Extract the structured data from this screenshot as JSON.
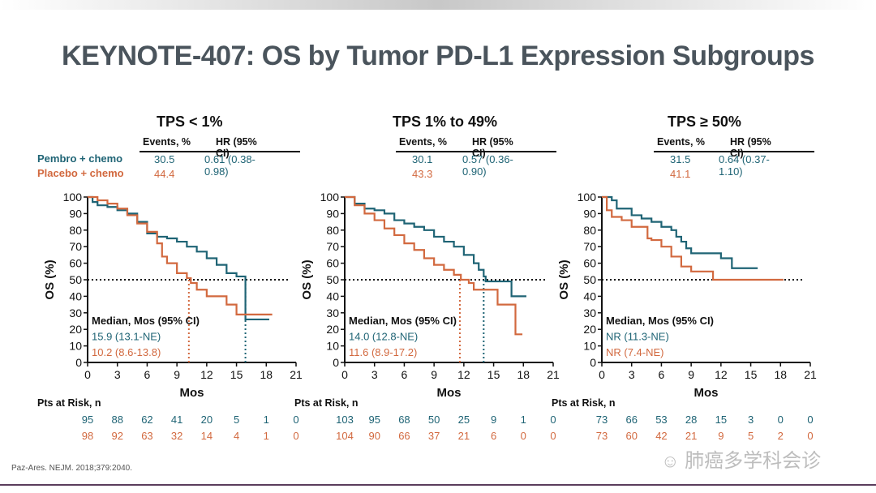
{
  "slide": {
    "title": "KEYNOTE-407: OS by Tumor PD-L1 Expression Subgroups",
    "citation": "Paz-Ares. NEJM. 2018;379:2040.",
    "watermark": "肺癌多学科会诊",
    "legend": {
      "pembro": "Pembro + chemo",
      "placebo": "Placebo + chemo"
    },
    "colors": {
      "pembro": "#1f6475",
      "placebo": "#d2693f",
      "text": "#111111",
      "title": "#4a545c"
    }
  },
  "chart_data": [
    {
      "type": "line",
      "title": "TPS < 1%",
      "xlabel": "Mos",
      "ylabel": "OS (%)",
      "xlim": [
        0,
        21
      ],
      "ylim": [
        0,
        100
      ],
      "xticks": [
        0,
        3,
        6,
        9,
        12,
        15,
        18,
        21
      ],
      "yticks": [
        0,
        10,
        20,
        30,
        40,
        50,
        60,
        70,
        80,
        90,
        100
      ],
      "reference_line": 50,
      "table": {
        "events_header": "Events, %",
        "hr_header": "HR (95% CI)",
        "pembro_events": "30.5",
        "placebo_events": "44.4",
        "hr": "0.61 (0.38-0.98)"
      },
      "median_header": "Median, Mos (95% CI)",
      "median_pembro": "15.9 (13.1-NE)",
      "median_placebo": "10.2 (8.6-13.8)",
      "median_values": {
        "pembro": 15.9,
        "placebo": 10.2
      },
      "risk_label": "Pts at Risk, n",
      "risk_pembro": [
        "95",
        "88",
        "62",
        "41",
        "20",
        "5",
        "1",
        "0"
      ],
      "risk_placebo": [
        "98",
        "92",
        "63",
        "32",
        "14",
        "4",
        "1",
        "0"
      ],
      "series": [
        {
          "name": "Pembro + chemo",
          "x": [
            0,
            0.5,
            1,
            2,
            3,
            4,
            5,
            6,
            7,
            8,
            9,
            10,
            11,
            12,
            13,
            14,
            15,
            15.9,
            15.9,
            18.3
          ],
          "y": [
            100,
            97,
            95,
            94,
            92,
            90,
            85,
            78,
            76,
            75,
            73,
            70,
            67,
            63,
            59,
            54,
            52,
            52,
            26,
            26
          ]
        },
        {
          "name": "Placebo + chemo",
          "x": [
            0,
            1,
            2,
            3,
            4,
            5,
            6,
            7,
            7.5,
            8,
            9,
            10,
            10.4,
            11,
            12,
            13,
            14,
            15,
            16,
            18.6
          ],
          "y": [
            100,
            98,
            96,
            93,
            89,
            84,
            79,
            72,
            64,
            60,
            54,
            51,
            48,
            44,
            40,
            40,
            35,
            29,
            29,
            29
          ]
        }
      ]
    },
    {
      "type": "line",
      "title": "TPS 1% to 49%",
      "xlabel": "Mos",
      "ylabel": "OS (%)",
      "xlim": [
        0,
        21
      ],
      "ylim": [
        0,
        100
      ],
      "xticks": [
        0,
        3,
        6,
        9,
        12,
        15,
        18,
        21
      ],
      "yticks": [
        0,
        10,
        20,
        30,
        40,
        50,
        60,
        70,
        80,
        90,
        100
      ],
      "reference_line": 50,
      "table": {
        "events_header": "Events, %",
        "hr_header": "HR (95% CI)",
        "pembro_events": "30.1",
        "placebo_events": "43.3",
        "hr": "0.57 (0.36-0.90)"
      },
      "median_header": "Median, Mos (95% CI)",
      "median_pembro": "14.0 (12.8-NE)",
      "median_placebo": "11.6 (8.9-17.2)",
      "median_values": {
        "pembro": 14.0,
        "placebo": 11.6
      },
      "risk_label": "Pts at Risk, n",
      "risk_pembro": [
        "103",
        "95",
        "68",
        "50",
        "25",
        "9",
        "1",
        "0"
      ],
      "risk_placebo": [
        "104",
        "90",
        "66",
        "37",
        "21",
        "6",
        "0",
        "0"
      ],
      "series": [
        {
          "name": "Pembro + chemo",
          "x": [
            0,
            1,
            2,
            3,
            4,
            5,
            6,
            7,
            8,
            9,
            10,
            11,
            12,
            13,
            13.5,
            14,
            14.2,
            16.8,
            16.8,
            18.3
          ],
          "y": [
            100,
            96,
            93,
            92,
            90,
            86,
            84,
            82,
            80,
            76,
            73,
            70,
            65,
            60,
            56,
            52,
            49,
            49,
            40,
            40
          ]
        },
        {
          "name": "Placebo + chemo",
          "x": [
            0,
            1,
            2,
            3,
            4,
            5,
            6,
            7,
            8,
            9,
            10,
            11,
            11.7,
            12.5,
            13,
            14,
            15,
            15.4,
            17.2,
            17.2,
            17.9
          ],
          "y": [
            100,
            95,
            90,
            86,
            81,
            77,
            72,
            68,
            63,
            59,
            56,
            53,
            50,
            48,
            44,
            44,
            44,
            35,
            35,
            17,
            17
          ]
        }
      ]
    },
    {
      "type": "line",
      "title": "TPS ≥ 50%",
      "xlabel": "Mos",
      "ylabel": "OS (%)",
      "xlim": [
        0,
        21
      ],
      "ylim": [
        0,
        100
      ],
      "xticks": [
        0,
        3,
        6,
        9,
        12,
        15,
        18,
        21
      ],
      "yticks": [
        0,
        10,
        20,
        30,
        40,
        50,
        60,
        70,
        80,
        90,
        100
      ],
      "reference_line": 50,
      "table": {
        "events_header": "Events, %",
        "hr_header": "HR (95% CI)",
        "pembro_events": "31.5",
        "placebo_events": "41.1",
        "hr": "0.64 (0.37-1.10)"
      },
      "median_header": "Median, Mos (95% CI)",
      "median_pembro": "NR (11.3-NE)",
      "median_placebo": "NR (7.4-NE)",
      "median_values": {
        "pembro": null,
        "placebo": null
      },
      "risk_label": "Pts at Risk, n",
      "risk_pembro": [
        "73",
        "66",
        "53",
        "28",
        "15",
        "3",
        "0",
        "0"
      ],
      "risk_placebo": [
        "73",
        "60",
        "42",
        "21",
        "9",
        "5",
        "2",
        "0"
      ],
      "series": [
        {
          "name": "Pembro + chemo",
          "x": [
            0,
            1,
            1.5,
            3,
            4,
            5,
            6,
            7,
            7.5,
            8,
            8.5,
            9,
            10,
            11,
            12,
            13,
            13.1,
            15.7
          ],
          "y": [
            100,
            98,
            93,
            89,
            87,
            85,
            82,
            80,
            76,
            73,
            69,
            66,
            66,
            66,
            63,
            63,
            57,
            57
          ]
        },
        {
          "name": "Placebo + chemo",
          "x": [
            0,
            0.5,
            1,
            2,
            3,
            4,
            4.6,
            5,
            6,
            7,
            8,
            9,
            10,
            11,
            11.2,
            18.3
          ],
          "y": [
            100,
            92,
            88,
            86,
            82,
            82,
            75,
            74,
            70,
            64,
            58,
            55,
            55,
            55,
            50,
            50
          ]
        }
      ]
    }
  ]
}
